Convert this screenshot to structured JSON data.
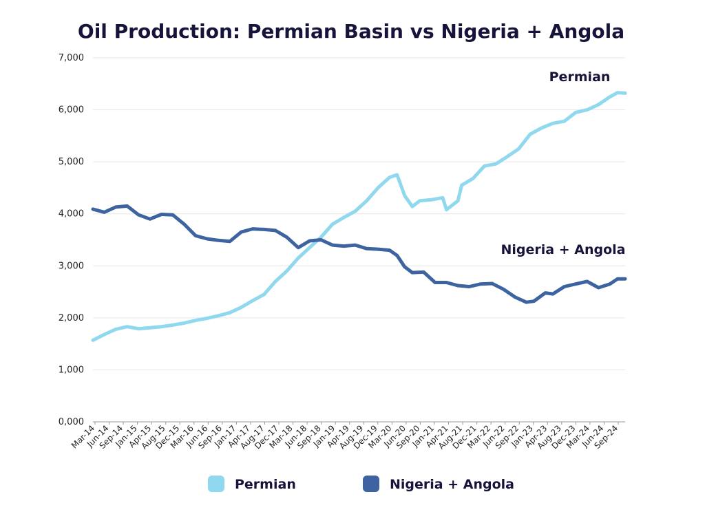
{
  "chart_data": {
    "type": "line",
    "title": "Oil Production: Permian Basin vs Nigeria + Angola",
    "xlabel": "",
    "ylabel": "",
    "ylim": [
      0,
      7000
    ],
    "y_ticks": [
      "0,000",
      "1,000",
      "2,000",
      "3,000",
      "4,000",
      "5,000",
      "6,000",
      "7,000"
    ],
    "x_ticks": [
      "Mar-14",
      "Jun-14",
      "Sep-14",
      "Jan-15",
      "Apr-15",
      "Aug-15",
      "Dec-15",
      "Mar-16",
      "Jun-16",
      "Sep-16",
      "Jan-17",
      "Apr-17",
      "Aug-17",
      "Dec-17",
      "Mar-18",
      "Jun-18",
      "Sep-18",
      "Jan-19",
      "Apr-19",
      "Aug-19",
      "Dec-19",
      "Mar-20",
      "Jun-20",
      "Sep-20",
      "Jan-21",
      "Apr-21",
      "Aug-21",
      "Dec-21",
      "Mar-22",
      "Jun-22",
      "Sep-22",
      "Jan-23",
      "Apr-23",
      "Aug-23",
      "Dec-23",
      "Mar-24",
      "Jun-24",
      "Sep-24"
    ],
    "grid": "horizontal",
    "legend": "bottom-center",
    "annotations": [
      "Permian",
      "Nigeria + Angola"
    ],
    "series": [
      {
        "name": "Permian",
        "color": "#8fd8ee",
        "points": [
          [
            0,
            1570
          ],
          [
            3,
            1680
          ],
          [
            6,
            1780
          ],
          [
            9,
            1830
          ],
          [
            12,
            1790
          ],
          [
            15,
            1810
          ],
          [
            18,
            1830
          ],
          [
            21,
            1860
          ],
          [
            24,
            1900
          ],
          [
            27,
            1950
          ],
          [
            30,
            1990
          ],
          [
            33,
            2040
          ],
          [
            36,
            2100
          ],
          [
            39,
            2200
          ],
          [
            42,
            2330
          ],
          [
            45,
            2450
          ],
          [
            48,
            2700
          ],
          [
            51,
            2900
          ],
          [
            54,
            3150
          ],
          [
            57,
            3350
          ],
          [
            60,
            3550
          ],
          [
            63,
            3800
          ],
          [
            66,
            3930
          ],
          [
            69,
            4050
          ],
          [
            72,
            4250
          ],
          [
            75,
            4500
          ],
          [
            78,
            4700
          ],
          [
            80,
            4750
          ],
          [
            82,
            4350
          ],
          [
            84,
            4140
          ],
          [
            86,
            4250
          ],
          [
            89,
            4270
          ],
          [
            92,
            4310
          ],
          [
            93,
            4080
          ],
          [
            96,
            4250
          ],
          [
            97,
            4550
          ],
          [
            100,
            4680
          ],
          [
            103,
            4920
          ],
          [
            106,
            4960
          ],
          [
            109,
            5100
          ],
          [
            112,
            5250
          ],
          [
            115,
            5530
          ],
          [
            118,
            5650
          ],
          [
            121,
            5740
          ],
          [
            124,
            5780
          ],
          [
            127,
            5950
          ],
          [
            130,
            6000
          ],
          [
            133,
            6100
          ],
          [
            136,
            6250
          ],
          [
            138,
            6330
          ],
          [
            140,
            6320
          ]
        ]
      },
      {
        "name": "Nigeria + Angola",
        "color": "#3d63a0",
        "points": [
          [
            0,
            4090
          ],
          [
            3,
            4030
          ],
          [
            6,
            4130
          ],
          [
            9,
            4150
          ],
          [
            12,
            3980
          ],
          [
            15,
            3900
          ],
          [
            18,
            3990
          ],
          [
            21,
            3980
          ],
          [
            24,
            3800
          ],
          [
            27,
            3580
          ],
          [
            30,
            3520
          ],
          [
            33,
            3490
          ],
          [
            36,
            3470
          ],
          [
            39,
            3650
          ],
          [
            42,
            3710
          ],
          [
            45,
            3700
          ],
          [
            48,
            3680
          ],
          [
            51,
            3550
          ],
          [
            54,
            3350
          ],
          [
            57,
            3480
          ],
          [
            60,
            3500
          ],
          [
            63,
            3400
          ],
          [
            66,
            3380
          ],
          [
            69,
            3400
          ],
          [
            72,
            3330
          ],
          [
            75,
            3320
          ],
          [
            78,
            3300
          ],
          [
            80,
            3200
          ],
          [
            82,
            2980
          ],
          [
            84,
            2870
          ],
          [
            87,
            2880
          ],
          [
            90,
            2680
          ],
          [
            93,
            2680
          ],
          [
            96,
            2620
          ],
          [
            99,
            2600
          ],
          [
            102,
            2650
          ],
          [
            105,
            2660
          ],
          [
            108,
            2550
          ],
          [
            111,
            2400
          ],
          [
            114,
            2300
          ],
          [
            116,
            2320
          ],
          [
            119,
            2480
          ],
          [
            121,
            2460
          ],
          [
            124,
            2600
          ],
          [
            127,
            2650
          ],
          [
            130,
            2700
          ],
          [
            133,
            2580
          ],
          [
            136,
            2650
          ],
          [
            138,
            2750
          ],
          [
            140,
            2750
          ]
        ]
      }
    ]
  }
}
